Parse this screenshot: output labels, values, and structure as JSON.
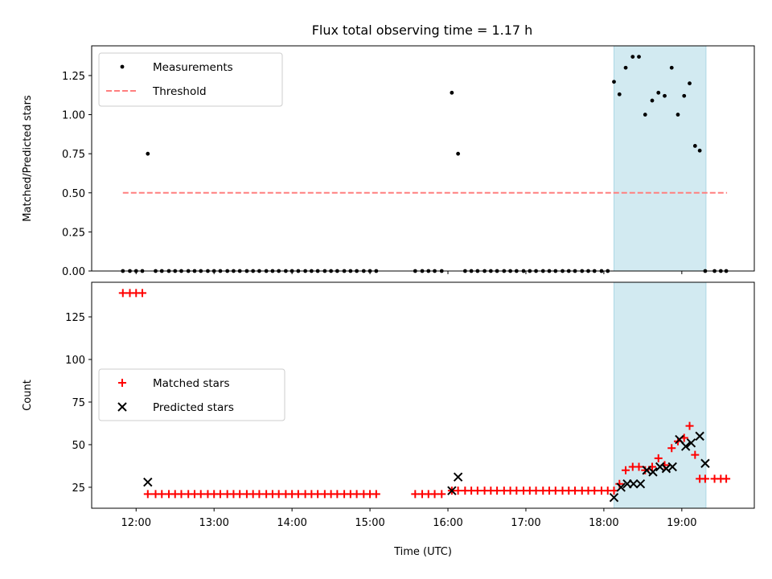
{
  "title": "Flux total observing time = 1.17 h",
  "colors": {
    "shade": "#add8e6",
    "threshold": "#ff7f7f",
    "matched": "#ff0000",
    "predicted": "#000000",
    "measurement": "#000000"
  },
  "chart_data": [
    {
      "type": "scatter",
      "ylabel": "Matched/Predicted stars",
      "ylim": [
        0,
        1.44
      ],
      "yticks": [
        0.0,
        0.25,
        0.5,
        0.75,
        1.0,
        1.25
      ],
      "yticklabels": [
        "0.00",
        "0.25",
        "0.50",
        "0.75",
        "1.00",
        "1.25"
      ],
      "xlim_hours": [
        11.43,
        19.93
      ],
      "xticks_hours": [
        12,
        13,
        14,
        15,
        16,
        17,
        18,
        19
      ],
      "xticklabels": [],
      "legend": {
        "location": "upper-left",
        "entries": [
          "Measurements",
          "Threshold"
        ]
      },
      "shaded_region_hours": [
        18.13,
        19.31
      ],
      "threshold": {
        "name": "Threshold",
        "value": 0.5,
        "x_from_hours": 11.83,
        "x_to_hours": 19.58
      },
      "series": [
        {
          "name": "Measurements",
          "style": "dot",
          "x_hours": [
            11.83,
            11.92,
            12.0,
            12.08,
            12.15,
            12.25,
            12.33,
            12.42,
            12.5,
            12.58,
            12.67,
            12.75,
            12.83,
            12.92,
            13.0,
            13.08,
            13.17,
            13.25,
            13.33,
            13.42,
            13.5,
            13.58,
            13.67,
            13.75,
            13.83,
            13.92,
            14.0,
            14.08,
            14.17,
            14.25,
            14.33,
            14.42,
            14.5,
            14.58,
            14.67,
            14.75,
            14.83,
            14.92,
            15.0,
            15.08,
            15.58,
            15.67,
            15.75,
            15.83,
            15.92,
            16.05,
            16.13,
            16.22,
            16.3,
            16.38,
            16.47,
            16.55,
            16.63,
            16.72,
            16.8,
            16.88,
            16.97,
            17.05,
            17.13,
            17.22,
            17.3,
            17.38,
            17.47,
            17.55,
            17.63,
            17.72,
            17.8,
            17.88,
            17.97,
            18.05,
            18.13,
            18.2,
            18.28,
            18.37,
            18.45,
            18.53,
            18.62,
            18.7,
            18.78,
            18.87,
            18.95,
            19.03,
            19.1,
            19.17,
            19.23,
            19.3,
            19.42,
            19.5,
            19.57
          ],
          "y": [
            0,
            0,
            0,
            0,
            0.75,
            0,
            0,
            0,
            0,
            0,
            0,
            0,
            0,
            0,
            0,
            0,
            0,
            0,
            0,
            0,
            0,
            0,
            0,
            0,
            0,
            0,
            0,
            0,
            0,
            0,
            0,
            0,
            0,
            0,
            0,
            0,
            0,
            0,
            0,
            0,
            0,
            0,
            0,
            0,
            0,
            1.14,
            0.75,
            0,
            0,
            0,
            0,
            0,
            0,
            0,
            0,
            0,
            0,
            0,
            0,
            0,
            0,
            0,
            0,
            0,
            0,
            0,
            0,
            0,
            0,
            0,
            1.21,
            1.13,
            1.3,
            1.37,
            1.37,
            1.0,
            1.09,
            1.14,
            1.12,
            1.3,
            1.0,
            1.12,
            1.2,
            0.8,
            0.77,
            0,
            0,
            0,
            0
          ]
        }
      ]
    },
    {
      "type": "scatter",
      "ylabel": "Count",
      "xlabel": "Time (UTC)",
      "ylim": [
        12.7,
        145.3
      ],
      "yticks": [
        25,
        50,
        75,
        100,
        125
      ],
      "yticklabels": [
        "25",
        "50",
        "75",
        "100",
        "125"
      ],
      "xlim_hours": [
        11.43,
        19.93
      ],
      "xticks_hours": [
        12,
        13,
        14,
        15,
        16,
        17,
        18,
        19
      ],
      "xticklabels": [
        "12:00",
        "13:00",
        "14:00",
        "15:00",
        "16:00",
        "17:00",
        "18:00",
        "19:00"
      ],
      "legend": {
        "location": "center-left",
        "entries": [
          "Matched stars",
          "Predicted stars"
        ]
      },
      "shaded_region_hours": [
        18.13,
        19.31
      ],
      "series": [
        {
          "name": "Matched stars",
          "style": "plus",
          "x_hours": [
            11.83,
            11.92,
            12.0,
            12.08,
            12.15,
            12.25,
            12.33,
            12.42,
            12.5,
            12.58,
            12.67,
            12.75,
            12.83,
            12.92,
            13.0,
            13.08,
            13.17,
            13.25,
            13.33,
            13.42,
            13.5,
            13.58,
            13.67,
            13.75,
            13.83,
            13.92,
            14.0,
            14.08,
            14.17,
            14.25,
            14.33,
            14.42,
            14.5,
            14.58,
            14.67,
            14.75,
            14.83,
            14.92,
            15.0,
            15.08,
            15.58,
            15.67,
            15.75,
            15.83,
            15.92,
            16.05,
            16.13,
            16.22,
            16.3,
            16.38,
            16.47,
            16.55,
            16.63,
            16.72,
            16.8,
            16.88,
            16.97,
            17.05,
            17.13,
            17.22,
            17.3,
            17.38,
            17.47,
            17.55,
            17.63,
            17.72,
            17.8,
            17.88,
            17.97,
            18.05,
            18.13,
            18.2,
            18.28,
            18.37,
            18.45,
            18.53,
            18.62,
            18.7,
            18.78,
            18.87,
            18.95,
            19.03,
            19.1,
            19.17,
            19.23,
            19.3,
            19.42,
            19.5,
            19.57
          ],
          "y": [
            139,
            139,
            139,
            139,
            21,
            21,
            21,
            21,
            21,
            21,
            21,
            21,
            21,
            21,
            21,
            21,
            21,
            21,
            21,
            21,
            21,
            21,
            21,
            21,
            21,
            21,
            21,
            21,
            21,
            21,
            21,
            21,
            21,
            21,
            21,
            21,
            21,
            21,
            21,
            21,
            21,
            21,
            21,
            21,
            21,
            23,
            23,
            23,
            23,
            23,
            23,
            23,
            23,
            23,
            23,
            23,
            23,
            23,
            23,
            23,
            23,
            23,
            23,
            23,
            23,
            23,
            23,
            23,
            23,
            23,
            23,
            27,
            35,
            37,
            37,
            35,
            37,
            42,
            38,
            48,
            52,
            54,
            61,
            44,
            30,
            30,
            30,
            30,
            30
          ]
        },
        {
          "name": "Predicted stars",
          "style": "x",
          "x_hours": [
            12.15,
            16.05,
            16.13,
            18.13,
            18.22,
            18.3,
            18.38,
            18.47,
            18.55,
            18.63,
            18.72,
            18.8,
            18.88,
            18.97,
            19.05,
            19.12,
            19.23,
            19.3
          ],
          "y": [
            28,
            23,
            31,
            19,
            25,
            27,
            27,
            27,
            35,
            34,
            37,
            36,
            37,
            53,
            49,
            51,
            55,
            39
          ]
        }
      ]
    }
  ]
}
